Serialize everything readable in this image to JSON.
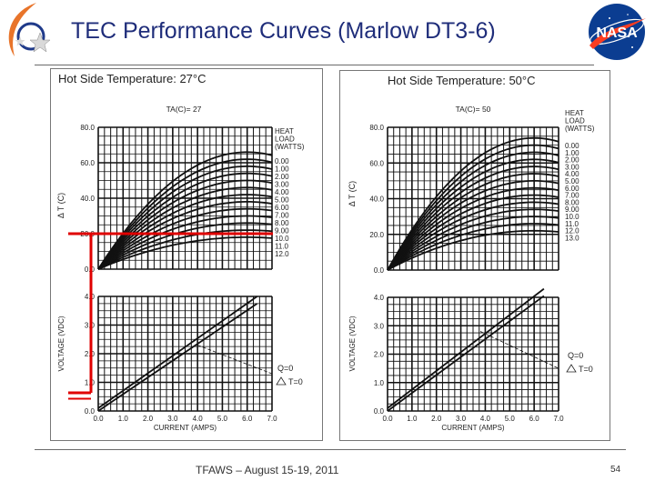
{
  "slide": {
    "title": "TEC Performance Curves (Marlow DT3-6)",
    "footer": "TFAWS – August 15-19, 2011",
    "page_number": "54",
    "logo_text": "NASA"
  },
  "colors": {
    "title": "#1f2d7a",
    "grid": "#111111",
    "highlight": "#e00000",
    "nasa_blue": "#0b3d91",
    "nasa_red": "#fc3d21"
  },
  "chart_data": [
    {
      "type": "line",
      "title": "Hot Side Temperature: 27°C",
      "subtitle": "TA(C)= 27",
      "top_plot": {
        "ylabel": "Δ T (C)",
        "ylim": [
          0,
          80
        ],
        "yticks": [
          "80.0",
          "60.0",
          "40.0",
          "20.0",
          "0.0"
        ],
        "legend_title": [
          "HEAT",
          "LOAD",
          "(WATTS)"
        ],
        "heat_loads": [
          "0.00",
          "1.00",
          "2.00",
          "3.00",
          "4.00",
          "5.00",
          "6.00",
          "7.00",
          "8.00",
          "9.00",
          "10.0",
          "11.0",
          "12.0"
        ],
        "curves_peak_dT": [
          66,
          62,
          58,
          54,
          50,
          46,
          42,
          38,
          34,
          30,
          26,
          22,
          18
        ],
        "peak_current": 6.0
      },
      "bottom_plot": {
        "ylabel": "VOLTAGE (VDC)",
        "xlabel": "CURRENT (AMPS)",
        "xticks": [
          "0.0",
          "1.0",
          "2.0",
          "3.0",
          "4.0",
          "5.0",
          "6.0",
          "7.0"
        ],
        "yticks": [
          "4.0",
          "3.0",
          "2.0",
          "1.0",
          "0.0"
        ],
        "xlim": [
          0,
          7
        ],
        "ylim": [
          0,
          4
        ],
        "voltage_q0": [
          [
            0,
            0.1
          ],
          [
            6.4,
            4.0
          ]
        ],
        "voltage_dt0": [
          [
            0,
            0.0
          ],
          [
            6.4,
            3.75
          ]
        ],
        "dashed_locus": [
          [
            4.0,
            2.3
          ],
          [
            7.0,
            1.3
          ]
        ],
        "labels": [
          "Q=0",
          "T=0"
        ]
      },
      "highlight": {
        "delta_t": 20,
        "voltage": 1.0
      }
    },
    {
      "type": "line",
      "title": "Hot Side Temperature: 50°C",
      "subtitle": "TA(C)= 50",
      "top_plot": {
        "ylabel": "Δ T (C)",
        "ylim": [
          0,
          80
        ],
        "yticks": [
          "80.0",
          "60.0",
          "40.0",
          "20.0",
          "0.0"
        ],
        "legend_title": [
          "HEAT",
          "LOAD",
          "(WATTS)"
        ],
        "heat_loads": [
          "0.00",
          "1.00",
          "2.00",
          "3.00",
          "4.00",
          "5.00",
          "6.00",
          "7.00",
          "8.00",
          "9.00",
          "10.0",
          "11.0",
          "12.0",
          "13.0"
        ],
        "curves_peak_dT": [
          74,
          70,
          66,
          62,
          58,
          54,
          50,
          46,
          42,
          38,
          34,
          30,
          26,
          22
        ],
        "peak_current": 6.0
      },
      "bottom_plot": {
        "ylabel": "VOLTAGE (VDC)",
        "xlabel": "CURRENT (AMPS)",
        "xticks": [
          "0.0",
          "1.0",
          "2.0",
          "3.0",
          "4.0",
          "5.0",
          "6.0",
          "7.0"
        ],
        "yticks": [
          "4.0",
          "3.0",
          "2.0",
          "1.0",
          "0.0"
        ],
        "xlim": [
          0,
          7
        ],
        "ylim": [
          0,
          4
        ],
        "voltage_q0": [
          [
            0,
            0.1
          ],
          [
            6.4,
            4.3
          ]
        ],
        "voltage_dt0": [
          [
            0,
            0.0
          ],
          [
            6.4,
            4.05
          ]
        ],
        "dashed_locus": [
          [
            3.8,
            2.8
          ],
          [
            7.0,
            1.5
          ]
        ],
        "labels": [
          "Q=0",
          "T=0"
        ]
      }
    }
  ]
}
